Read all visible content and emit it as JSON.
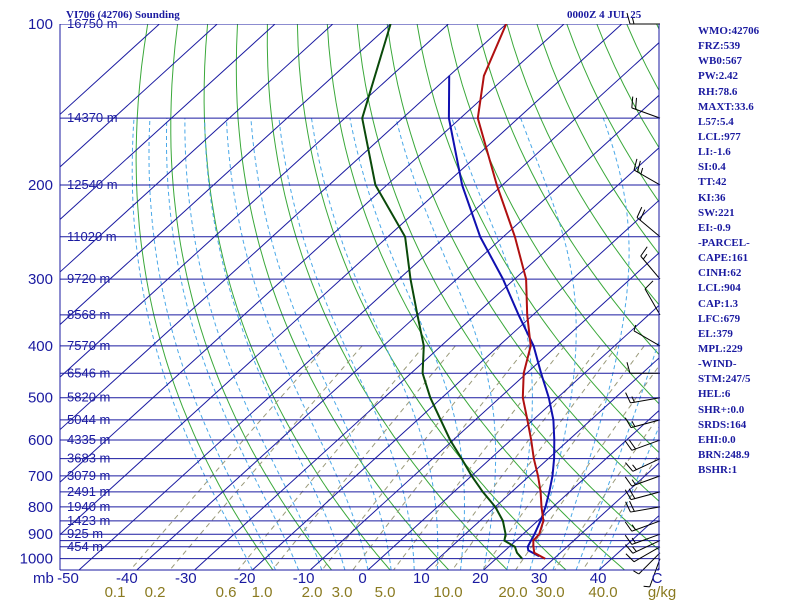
{
  "header": {
    "station": "VI706 (42706) Sounding",
    "time": "0000Z  4 JUL 25"
  },
  "indices": [
    "WMO:42706",
    "FRZ:539",
    "WB0:567",
    "PW:2.42",
    "RH:78.6",
    "MAXT:33.6",
    "L57:5.4",
    "LCL:977",
    "LI:-1.6",
    "SI:0.4",
    "TT:42",
    "KI:36",
    "SW:221",
    "EI:-0.9",
    "-PARCEL-",
    "CAPE:161",
    "CINH:62",
    "LCL:904",
    "CAP:1.3",
    "LFC:679",
    "EL:379",
    "MPL:229",
    "-WIND-",
    "STM:247/5",
    "HEL:6",
    "SHR+:0.0",
    "SRDS:164",
    "EHI:0.0",
    "BRN:248.9",
    "BSHR:1"
  ],
  "colors": {
    "temperature": "#b01010",
    "dewpoint": "#0a4a0a",
    "parcel": "#1010b0",
    "isobars": "#1a1aa0",
    "isotherms": "#1a1aa0",
    "dry_adiabats": "#3aa83a",
    "moist_adiabats": "#4aa8e8",
    "mixing_ratio": "#9a9a7a",
    "text": "#1a1aa0",
    "mixing_labels": "#8a7a20"
  },
  "chart_data": {
    "type": "skew-t",
    "pressure_labels": [
      "100",
      "200",
      "300",
      "400",
      "500",
      "600",
      "700",
      "800",
      "900",
      "1000"
    ],
    "isobars_hpa": [
      100,
      150,
      200,
      250,
      300,
      350,
      400,
      450,
      500,
      550,
      600,
      650,
      700,
      750,
      800,
      850,
      900,
      925,
      950,
      1000
    ],
    "height_labels": [
      {
        "p": 100,
        "text": "16750 m"
      },
      {
        "p": 150,
        "text": "14370 m"
      },
      {
        "p": 200,
        "text": "12540 m"
      },
      {
        "p": 250,
        "text": "11020 m"
      },
      {
        "p": 300,
        "text": "9720 m"
      },
      {
        "p": 350,
        "text": "8568 m"
      },
      {
        "p": 400,
        "text": "7570 m"
      },
      {
        "p": 450,
        "text": "6546 m"
      },
      {
        "p": 500,
        "text": "5820 m"
      },
      {
        "p": 550,
        "text": "5044 m"
      },
      {
        "p": 600,
        "text": "4335 m"
      },
      {
        "p": 650,
        "text": "3683 m"
      },
      {
        "p": 700,
        "text": "3079 m"
      },
      {
        "p": 750,
        "text": "2491 m"
      },
      {
        "p": 800,
        "text": "1940 m"
      },
      {
        "p": 850,
        "text": "1423 m"
      },
      {
        "p": 900,
        "text": "925 m"
      },
      {
        "p": 950,
        "text": "454 m"
      }
    ],
    "x_axis_unit": "mb",
    "temperature_ticks": [
      "-50",
      "-40",
      "-30",
      "-20",
      "-10",
      "0",
      "10",
      "20",
      "30",
      "40",
      "C"
    ],
    "mixing_ratio_labels": [
      "0.1",
      "0.2",
      "0.6",
      "1.0",
      "2.0",
      "3.0",
      "5.0",
      "10.0",
      "20.0",
      "30.0",
      "40.0",
      "g/kg"
    ],
    "temperature_profile": [
      {
        "p": 1000,
        "t": 28.5
      },
      {
        "p": 975,
        "t": 25.5
      },
      {
        "p": 950,
        "t": 24.2
      },
      {
        "p": 925,
        "t": 23.0
      },
      {
        "p": 900,
        "t": 22.8
      },
      {
        "p": 850,
        "t": 21.0
      },
      {
        "p": 800,
        "t": 18.0
      },
      {
        "p": 750,
        "t": 15.0
      },
      {
        "p": 700,
        "t": 11.5
      },
      {
        "p": 650,
        "t": 7.5
      },
      {
        "p": 600,
        "t": 3.5
      },
      {
        "p": 550,
        "t": -1.0
      },
      {
        "p": 500,
        "t": -6.0
      },
      {
        "p": 450,
        "t": -10.5
      },
      {
        "p": 400,
        "t": -14.5
      },
      {
        "p": 350,
        "t": -21.0
      },
      {
        "p": 300,
        "t": -28.0
      },
      {
        "p": 250,
        "t": -38.0
      },
      {
        "p": 200,
        "t": -51.0
      },
      {
        "p": 150,
        "t": -67.0
      },
      {
        "p": 125,
        "t": -74.0
      },
      {
        "p": 100,
        "t": -80.0
      }
    ],
    "dewpoint_profile": [
      {
        "p": 1000,
        "t": 24.5
      },
      {
        "p": 975,
        "t": 22.5
      },
      {
        "p": 950,
        "t": 21.0
      },
      {
        "p": 925,
        "t": 18.0
      },
      {
        "p": 900,
        "t": 17.0
      },
      {
        "p": 850,
        "t": 14.0
      },
      {
        "p": 800,
        "t": 10.0
      },
      {
        "p": 750,
        "t": 5.0
      },
      {
        "p": 700,
        "t": 0.0
      },
      {
        "p": 650,
        "t": -5.0
      },
      {
        "p": 600,
        "t": -10.5
      },
      {
        "p": 550,
        "t": -16.0
      },
      {
        "p": 500,
        "t": -22.0
      },
      {
        "p": 450,
        "t": -28.0
      },
      {
        "p": 400,
        "t": -33.0
      },
      {
        "p": 350,
        "t": -40.0
      },
      {
        "p": 300,
        "t": -48.0
      },
      {
        "p": 250,
        "t": -57.0
      },
      {
        "p": 200,
        "t": -72.0
      },
      {
        "p": 150,
        "t": -87.0
      },
      {
        "p": 100,
        "t": -100.0
      }
    ],
    "parcel_profile": [
      {
        "p": 990,
        "t": 27.0
      },
      {
        "p": 965,
        "t": 24.0
      },
      {
        "p": 950,
        "t": 23.2
      },
      {
        "p": 925,
        "t": 22.6
      },
      {
        "p": 900,
        "t": 22.0
      },
      {
        "p": 850,
        "t": 20.5
      },
      {
        "p": 800,
        "t": 18.7
      },
      {
        "p": 750,
        "t": 16.5
      },
      {
        "p": 700,
        "t": 14.0
      },
      {
        "p": 650,
        "t": 11.0
      },
      {
        "p": 600,
        "t": 7.5
      },
      {
        "p": 550,
        "t": 3.5
      },
      {
        "p": 500,
        "t": -1.5
      },
      {
        "p": 450,
        "t": -7.5
      },
      {
        "p": 400,
        "t": -14.0
      },
      {
        "p": 350,
        "t": -22.5
      },
      {
        "p": 300,
        "t": -32.0
      },
      {
        "p": 250,
        "t": -44.0
      },
      {
        "p": 200,
        "t": -57.0
      },
      {
        "p": 150,
        "t": -72.0
      },
      {
        "p": 125,
        "t": -80.0
      }
    ],
    "wind_barbs": [
      {
        "p": 1000,
        "dir": 200,
        "spd": 5
      },
      {
        "p": 975,
        "dir": 225,
        "spd": 5
      },
      {
        "p": 950,
        "dir": 240,
        "spd": 10
      },
      {
        "p": 925,
        "dir": 245,
        "spd": 15
      },
      {
        "p": 900,
        "dir": 250,
        "spd": 15
      },
      {
        "p": 850,
        "dir": 250,
        "spd": 15
      },
      {
        "p": 800,
        "dir": 260,
        "spd": 20
      },
      {
        "p": 750,
        "dir": 255,
        "spd": 20
      },
      {
        "p": 700,
        "dir": 250,
        "spd": 15
      },
      {
        "p": 650,
        "dir": 245,
        "spd": 15
      },
      {
        "p": 600,
        "dir": 250,
        "spd": 20
      },
      {
        "p": 550,
        "dir": 255,
        "spd": 15
      },
      {
        "p": 500,
        "dir": 260,
        "spd": 15
      },
      {
        "p": 450,
        "dir": 270,
        "spd": 10
      },
      {
        "p": 400,
        "dir": 300,
        "spd": 5
      },
      {
        "p": 350,
        "dir": 330,
        "spd": 10
      },
      {
        "p": 300,
        "dir": 320,
        "spd": 15
      },
      {
        "p": 250,
        "dir": 310,
        "spd": 20
      },
      {
        "p": 200,
        "dir": 300,
        "spd": 25
      },
      {
        "p": 150,
        "dir": 290,
        "spd": 20
      },
      {
        "p": 100,
        "dir": 270,
        "spd": 15
      }
    ]
  }
}
